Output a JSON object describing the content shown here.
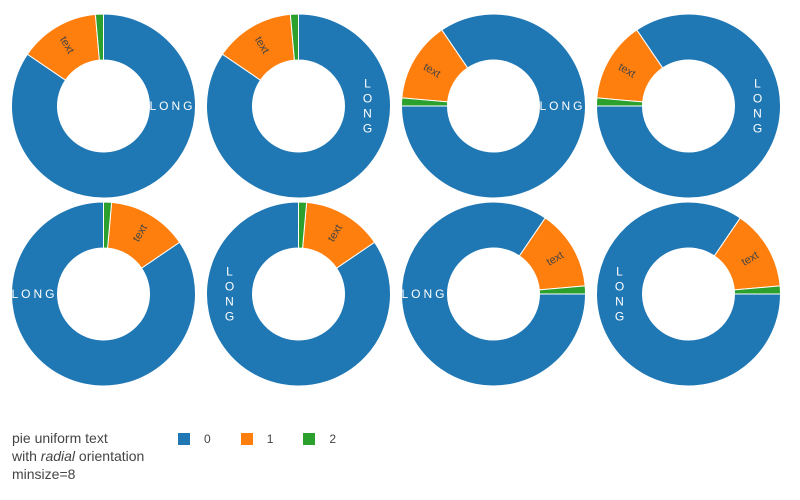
{
  "chart_data": {
    "type": "pie",
    "hole": true,
    "title_lines": [
      "pie uniform text",
      "with ",
      "radial",
      " orientation",
      "minsize=8"
    ],
    "legend": {
      "placement": "bottom-left",
      "entries": [
        {
          "label": "0",
          "color": "#1f77b4"
        },
        {
          "label": "1",
          "color": "#ff7f0e"
        },
        {
          "label": "2",
          "color": "#2ca02c"
        }
      ]
    },
    "colors": [
      "#1f77b4",
      "#ff7f0e",
      "#2ca02c"
    ],
    "slice_texts": [
      "LONG",
      "text",
      ""
    ],
    "pies": [
      {
        "values": [
          60,
          10,
          1
        ],
        "rotation": 0,
        "direction": "clockwise",
        "text_orientation": "horizontal"
      },
      {
        "values": [
          60,
          10,
          1
        ],
        "rotation": 0,
        "direction": "clockwise",
        "text_orientation": "vertical"
      },
      {
        "values": [
          60,
          10,
          1
        ],
        "rotation": -90,
        "direction": "counterclockwise",
        "text_orientation": "horizontal"
      },
      {
        "values": [
          60,
          10,
          1
        ],
        "rotation": -90,
        "direction": "counterclockwise",
        "text_orientation": "vertical"
      },
      {
        "values": [
          60,
          10,
          1
        ],
        "rotation": 0,
        "direction": "counterclockwise",
        "text_orientation": "horizontal"
      },
      {
        "values": [
          60,
          10,
          1
        ],
        "rotation": 0,
        "direction": "counterclockwise",
        "text_orientation": "vertical"
      },
      {
        "values": [
          60,
          10,
          1
        ],
        "rotation": 90,
        "direction": "clockwise",
        "text_orientation": "horizontal"
      },
      {
        "values": [
          60,
          10,
          1
        ],
        "rotation": 90,
        "direction": "clockwise",
        "text_orientation": "vertical"
      }
    ]
  }
}
